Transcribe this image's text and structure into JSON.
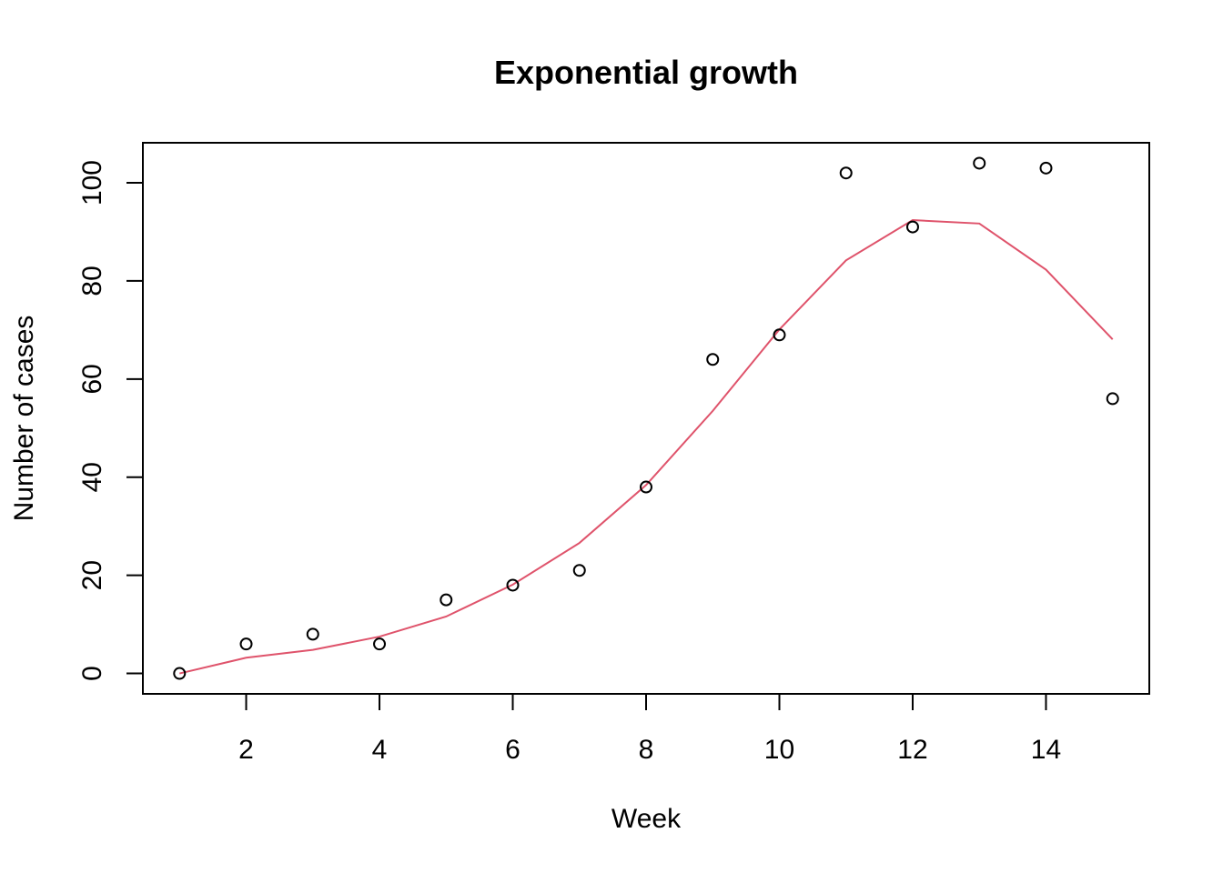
{
  "chart_data": {
    "type": "scatter",
    "title": "Exponential growth",
    "xlabel": "Week",
    "ylabel": "Number of cases",
    "xlim": [
      0.45,
      15.55
    ],
    "ylim": [
      -4.16,
      108.16
    ],
    "x_ticks": [
      2,
      4,
      6,
      8,
      10,
      12,
      14
    ],
    "y_ticks": [
      0,
      20,
      40,
      60,
      80,
      100
    ],
    "grid": false,
    "legend": "none",
    "series": [
      {
        "type": "scatter",
        "marker": "open-circle",
        "color": "#000000",
        "x": [
          1,
          2,
          3,
          4,
          5,
          6,
          7,
          8,
          9,
          10,
          11,
          12,
          13,
          14,
          15
        ],
        "y": [
          0,
          6,
          8,
          6,
          15,
          18,
          21,
          38,
          64,
          69,
          102,
          91,
          104,
          103,
          56
        ]
      },
      {
        "type": "line",
        "color": "#DF536B",
        "x": [
          1,
          2,
          3,
          4,
          5,
          6,
          7,
          8,
          9,
          10,
          11,
          12,
          13,
          14,
          15
        ],
        "y": [
          0,
          3.2,
          4.8,
          7.5,
          11.6,
          18.1,
          26.6,
          38.4,
          53.5,
          70.1,
          84.2,
          92.4,
          91.7,
          82.3,
          68.1
        ]
      }
    ]
  }
}
